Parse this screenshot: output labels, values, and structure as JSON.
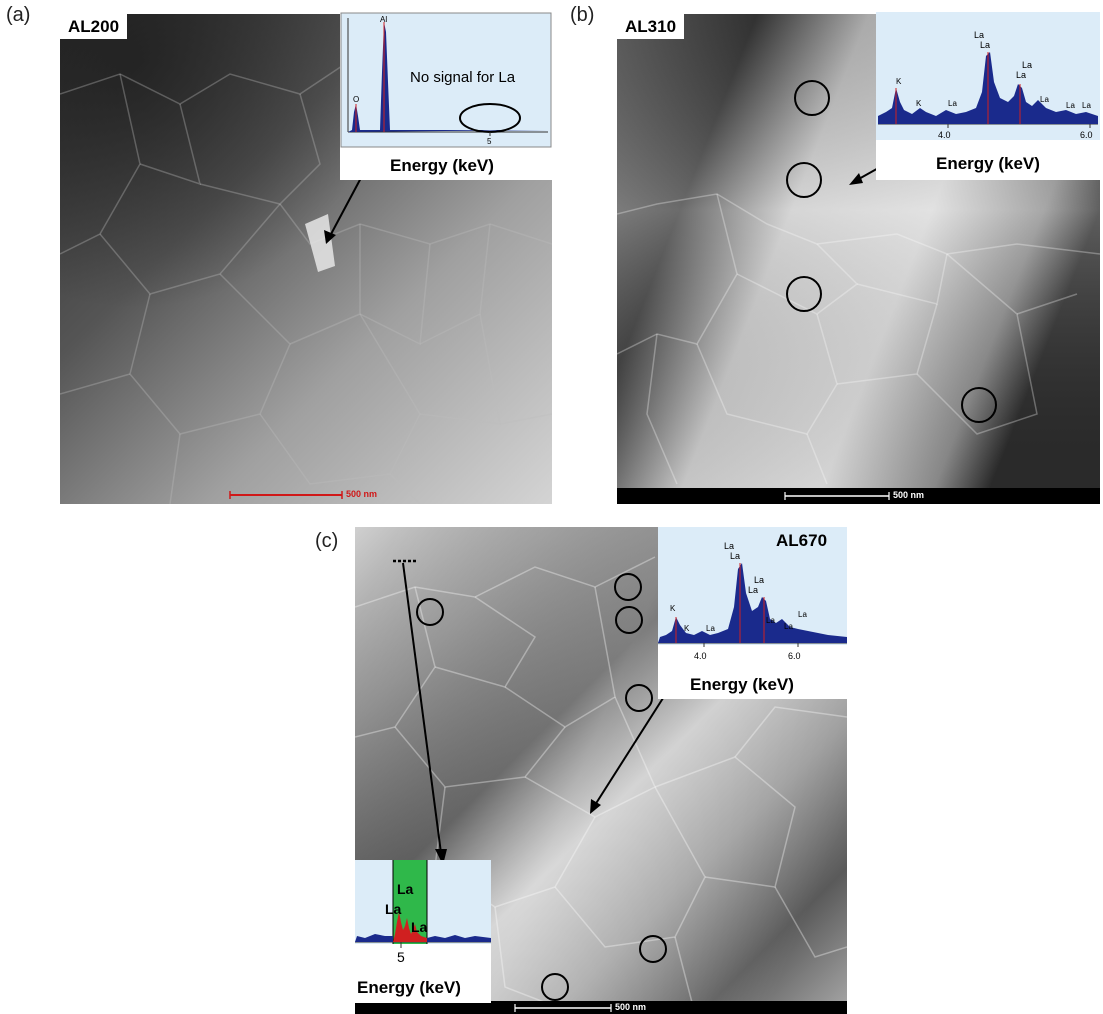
{
  "panels": [
    {
      "label": "(a)",
      "sample": "AL200",
      "inset": {
        "peaks": [
          "O",
          "Al"
        ],
        "tick": "5",
        "note": "No signal for La",
        "axis_label": "Energy (keV)"
      },
      "scale": "500 nm"
    },
    {
      "label": "(b)",
      "sample": "AL310",
      "inset": {
        "peaks": [
          "K",
          "K",
          "La",
          "La",
          "La",
          "La",
          "La",
          "La",
          "La",
          "La"
        ],
        "ticks": [
          "4.0",
          "6.0"
        ],
        "axis_label": "Energy (keV)"
      },
      "scale": "500 nm"
    },
    {
      "label": "(c)",
      "sample": "AL670",
      "inset_top": {
        "peaks": [
          "K",
          "K",
          "La",
          "La",
          "La",
          "La",
          "La",
          "La",
          "La",
          "La"
        ],
        "ticks": [
          "4.0",
          "6.0"
        ],
        "axis_label": "Energy (keV)"
      },
      "inset_bottom": {
        "peaks": [
          "La",
          "La",
          "La"
        ],
        "tick": "5",
        "axis_label": "Energy (keV)"
      },
      "scale": "500 nm"
    }
  ],
  "colors": {
    "spectrum_bg": "#dcecf8",
    "spectrum_fill": "#1a2a8c",
    "peak_marker": "#d02020",
    "highlight_window": "#2fb84a",
    "scalebar_red": "#d01818"
  }
}
